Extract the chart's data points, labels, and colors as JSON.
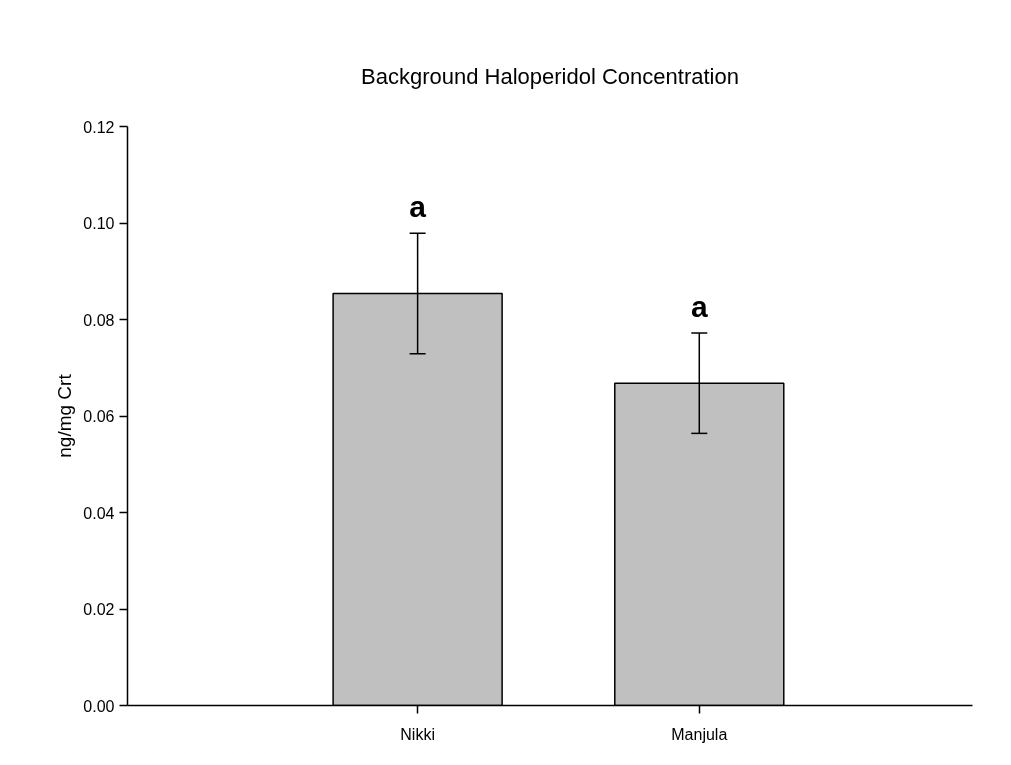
{
  "chart_data": {
    "type": "bar",
    "title": "Background Haloperidol Concentration",
    "ylabel": "ng/mg Crt",
    "categories": [
      "Nikki",
      "Manjula"
    ],
    "values": [
      0.0854,
      0.0668
    ],
    "errors": [
      0.0125,
      0.0104
    ],
    "color": "#c0c0c0",
    "ylim": [
      0,
      0.12
    ],
    "yticks": [
      {
        "value": 0,
        "label": "0.00"
      },
      {
        "value": 0.02,
        "label": "0.02"
      },
      {
        "value": 0.04,
        "label": "0.04"
      },
      {
        "value": 0.06,
        "label": "0.06"
      },
      {
        "value": 0.08,
        "label": "0.08"
      },
      {
        "value": 0.1,
        "label": "0.10"
      },
      {
        "value": 0.12,
        "label": "0.12"
      }
    ],
    "annotations": [
      "a",
      "a"
    ],
    "grid": false
  }
}
